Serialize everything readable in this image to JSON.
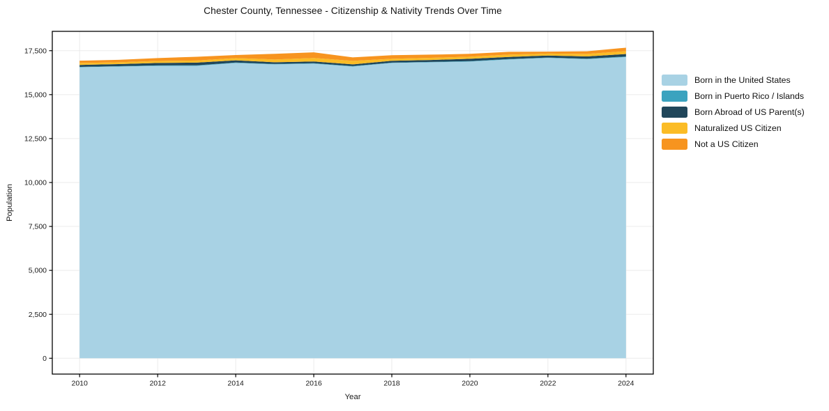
{
  "chart_data": {
    "type": "area",
    "stacked": true,
    "title": "Chester County, Tennessee - Citizenship & Nativity Trends Over Time",
    "xlabel": "Year",
    "ylabel": "Population",
    "x": [
      2010,
      2011,
      2012,
      2013,
      2014,
      2015,
      2016,
      2017,
      2018,
      2019,
      2020,
      2021,
      2022,
      2023,
      2024
    ],
    "series": [
      {
        "name": "Born in the United States",
        "color": "#a8d2e4",
        "values": [
          16560,
          16600,
          16640,
          16640,
          16800,
          16720,
          16760,
          16600,
          16800,
          16840,
          16880,
          17000,
          17090,
          17020,
          17140
        ]
      },
      {
        "name": "Born in Puerto Rico / Islands",
        "color": "#3ba3bf",
        "values": [
          20,
          20,
          25,
          30,
          25,
          25,
          25,
          25,
          20,
          20,
          25,
          25,
          20,
          25,
          30
        ]
      },
      {
        "name": "Born Abroad of US Parent(s)",
        "color": "#20465a",
        "values": [
          110,
          115,
          135,
          150,
          125,
          95,
          100,
          95,
          105,
          110,
          135,
          120,
          115,
          130,
          140
        ]
      },
      {
        "name": "Naturalized US Citizen",
        "color": "#fbbc26",
        "values": [
          110,
          105,
          115,
          120,
          130,
          160,
          200,
          200,
          115,
          125,
          120,
          130,
          110,
          140,
          160
        ]
      },
      {
        "name": "Not a US Citizen",
        "color": "#f7941f",
        "values": [
          130,
          140,
          165,
          215,
          175,
          320,
          320,
          200,
          200,
          180,
          160,
          160,
          110,
          150,
          200
        ]
      }
    ],
    "xticks": [
      2010,
      2012,
      2014,
      2016,
      2018,
      2020,
      2022,
      2024
    ],
    "yticks": [
      0,
      2500,
      5000,
      7500,
      10000,
      12500,
      15000,
      17500
    ],
    "xlim": [
      2009.3,
      2024.7
    ],
    "ylim": [
      -900,
      18600
    ],
    "grid": true,
    "legend_position": "right-outside"
  }
}
